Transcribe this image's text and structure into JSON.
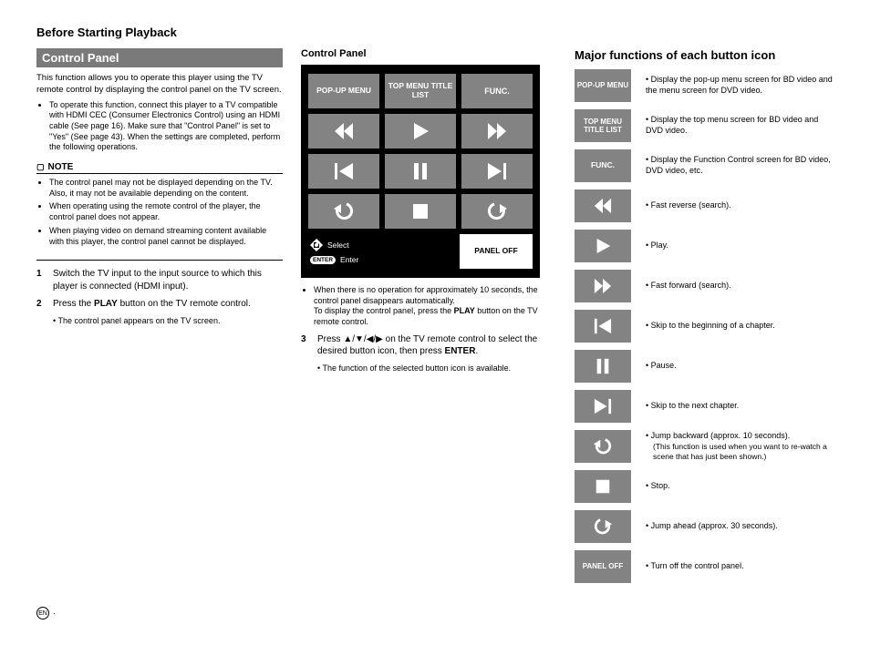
{
  "page_title": "Before Starting Playback",
  "left": {
    "section_bar": "Control Panel",
    "intro": "This function allows you to operate this player using the TV remote control by displaying the control panel on the TV screen.",
    "intro_bullet": "To operate this function, connect this player to a TV compatible with HDMI CEC (Consumer Electronics Control) using an HDMI cable (See page 16). Make sure that \"Control Panel\" is set to \"Yes\" (See page 43). When the settings are completed, perform the following operations.",
    "note_label": "NOTE",
    "notes": [
      "The control panel may not be displayed depending on the TV. Also, it may not be available depending on the content.",
      "When operating using the remote control of the player, the control panel does not appear.",
      "When playing video on demand streaming content available with this player, the control panel cannot be displayed."
    ],
    "steps": [
      {
        "n": "1",
        "text": "Switch the TV input to the input source to which this player is connected (HDMI input)."
      },
      {
        "n": "2",
        "text_pre": "Press the ",
        "bold": "PLAY",
        "text_post": " button on the TV remote control.",
        "sub": "The control panel appears on the TV screen."
      }
    ]
  },
  "mid": {
    "title": "Control Panel",
    "panel": {
      "row1": [
        "POP-UP MENU",
        "TOP MENU TITLE LIST",
        "FUNC."
      ],
      "select": "Select",
      "enter_pill": "ENTER",
      "enter": "Enter",
      "panel_off": "PANEL OFF"
    },
    "below": {
      "bullet1a": "When there is no operation for approximately 10 seconds, the control panel disappears automatically.",
      "bullet1b_pre": "To display the control panel, press the ",
      "bullet1b_bold": "PLAY",
      "bullet1b_post": " button on the TV remote control.",
      "step3_n": "3",
      "step3_pre": "Press ",
      "step3_mid": " on the TV remote control to select the desired button icon, then press ",
      "step3_bold": "ENTER",
      "step3_post": ".",
      "step3_sub": "The function of the selected button icon is available."
    }
  },
  "right": {
    "title": "Major functions of each button icon",
    "rows": [
      {
        "label": "POP-UP MENU",
        "desc": "Display the pop-up menu screen for BD video and the menu screen for DVD video."
      },
      {
        "label": "TOP MENU TITLE LIST",
        "desc": "Display the top menu screen for BD video and DVD video."
      },
      {
        "label": "FUNC.",
        "desc": "Display the Function Control screen for BD video, DVD video, etc."
      },
      {
        "icon": "rew",
        "desc": "Fast reverse (search)."
      },
      {
        "icon": "play",
        "desc": "Play."
      },
      {
        "icon": "ff",
        "desc": "Fast forward (search)."
      },
      {
        "icon": "prev",
        "desc": "Skip to the beginning of a chapter."
      },
      {
        "icon": "pause",
        "desc": "Pause."
      },
      {
        "icon": "next",
        "desc": "Skip to the next chapter."
      },
      {
        "icon": "jumpback",
        "desc": "Jump backward (approx. 10 seconds).",
        "sub": "(This function is used when you want to re-watch a scene that has just been shown.)"
      },
      {
        "icon": "stop",
        "desc": "Stop."
      },
      {
        "icon": "jumpfwd",
        "desc": "Jump ahead (approx. 30 seconds)."
      },
      {
        "label": "PANEL OFF",
        "desc": "Turn off the control panel."
      }
    ]
  },
  "page_lang": "EN"
}
